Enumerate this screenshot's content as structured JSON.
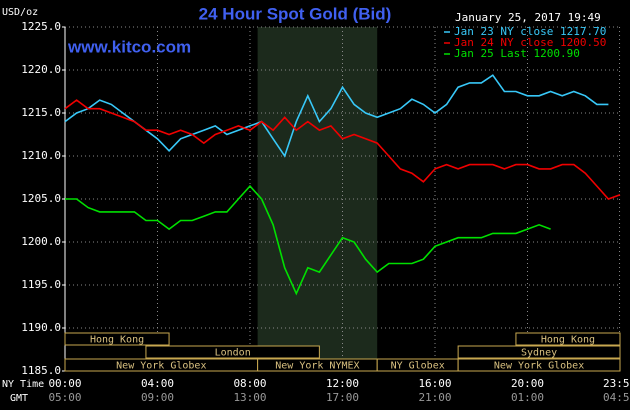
{
  "chart_data": {
    "type": "line",
    "title": "24 Hour Spot Gold (Bid)",
    "ylabel": "USD/oz",
    "timestamp": "January 25, 2017 19:49",
    "watermark": "www.kitco.com",
    "x_axis_labels": [
      "NY Time",
      "GMT"
    ],
    "xlim": [
      0,
      24
    ],
    "xticks": [
      {
        "value": 0,
        "label": "00:00"
      },
      {
        "value": 4,
        "label": "04:00"
      },
      {
        "value": 8,
        "label": "08:00"
      },
      {
        "value": 12,
        "label": "12:00"
      },
      {
        "value": 16,
        "label": "16:00"
      },
      {
        "value": 20,
        "label": "20:00"
      },
      {
        "value": 23.98,
        "label": "23:59"
      }
    ],
    "gmt_labels": [
      "05:00",
      "09:00",
      "13:00",
      "17:00",
      "21:00",
      "01:00",
      "04:59"
    ],
    "ylim": [
      1185,
      1225
    ],
    "yticks": [
      {
        "value": 1225,
        "label": "1225.0"
      },
      {
        "value": 1220,
        "label": "1220.0"
      },
      {
        "value": 1215,
        "label": "1215.0"
      },
      {
        "value": 1210,
        "label": "1210.0"
      },
      {
        "value": 1205,
        "label": "1205.0"
      },
      {
        "value": 1200,
        "label": "1200.0"
      },
      {
        "value": 1195,
        "label": "1195.0"
      },
      {
        "value": 1190,
        "label": "1190.0"
      },
      {
        "value": 1185,
        "label": "1185.0"
      }
    ],
    "grid": true,
    "x": [
      0,
      0.5,
      1,
      1.5,
      2,
      2.5,
      3,
      3.5,
      4,
      4.5,
      5,
      5.5,
      6,
      6.5,
      7,
      7.5,
      8,
      8.5,
      9,
      9.5,
      10,
      10.5,
      11,
      11.5,
      12,
      12.5,
      13,
      13.5,
      14,
      14.5,
      15,
      15.5,
      16,
      16.5,
      17,
      17.5,
      18,
      18.5,
      19,
      19.5,
      20,
      20.5,
      21,
      21.5,
      22,
      22.5,
      23,
      23.5,
      24
    ],
    "series": [
      {
        "name": "Jan 23 NY close 1217.70",
        "color": "#38c8f8",
        "values": [
          1214,
          1215,
          1215.5,
          1216.5,
          1216,
          1215,
          1214,
          1213,
          1212,
          1210.6,
          1212,
          1212.5,
          1213,
          1213.5,
          1212.5,
          1213,
          1213.5,
          1214,
          1212,
          1210,
          1214,
          1217,
          1214,
          1215.5,
          1218,
          1216,
          1215,
          1214.5,
          1215,
          1215.5,
          1216.6,
          1216,
          1215,
          1216,
          1218,
          1218.5,
          1218.5,
          1219.4,
          1217.5,
          1217.5,
          1217,
          1217,
          1217.5,
          1217,
          1217.5,
          1217,
          1216,
          1216,
          null
        ]
      },
      {
        "name": "Jan 24 NY close 1200.50",
        "color": "#f00000",
        "values": [
          1215.5,
          1216.5,
          1215.5,
          1215.5,
          1215,
          1214.5,
          1214,
          1213,
          1213,
          1212.5,
          1213,
          1212.5,
          1211.5,
          1212.5,
          1213,
          1213.5,
          1213,
          1214,
          1213,
          1214.5,
          1213,
          1214,
          1213,
          1213.5,
          1212,
          1212.5,
          1212,
          1211.5,
          1210,
          1208.5,
          1208,
          1207,
          1208.5,
          1209,
          1208.5,
          1209,
          1209,
          1209,
          1208.5,
          1209,
          1209,
          1208.5,
          1208.5,
          1209,
          1209,
          1208,
          1206.5,
          1205,
          1205.5
        ]
      },
      {
        "name": "Jan 25 Last 1200.90",
        "color": "#00e000",
        "values": [
          1205,
          1205,
          1204,
          1203.5,
          1203.5,
          1203.5,
          1203.5,
          1202.5,
          1202.5,
          1201.5,
          1202.5,
          1202.5,
          1203,
          1203.5,
          1203.5,
          1205,
          1206.5,
          1205,
          1202,
          1197,
          1194,
          1197,
          1196.5,
          1198.5,
          1200.5,
          1200,
          1198,
          1196.5,
          1197.5,
          1197.5,
          1197.5,
          1198,
          1199.5,
          1200,
          1200.5,
          1200.5,
          1200.5,
          1201,
          1201,
          1201,
          1201.5,
          1202,
          1201.5,
          null,
          null,
          null,
          null,
          null,
          null
        ]
      }
    ],
    "sessions": [
      [
        {
          "name": "Hong Kong",
          "start": 0,
          "end": 4.5
        },
        {
          "name": "Hong Kong",
          "start": 19.5,
          "end": 24
        }
      ],
      [
        {
          "name": "London",
          "start": 3.5,
          "end": 11
        },
        {
          "name": "Sydney",
          "start": 17,
          "end": 24
        }
      ],
      [
        {
          "name": "New York Globex",
          "start": 0,
          "end": 8.33
        },
        {
          "name": "New York NYMEX",
          "start": 8.33,
          "end": 13.5
        },
        {
          "name": "NY Globex",
          "start": 13.5,
          "end": 17
        },
        {
          "name": "New York Globex",
          "start": 17,
          "end": 24
        }
      ]
    ],
    "shaded_session": "chart_data.sessions.2.1"
  }
}
